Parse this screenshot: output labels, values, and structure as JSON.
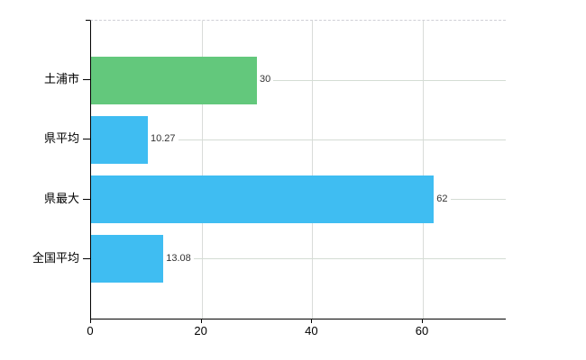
{
  "chart_data": {
    "type": "bar",
    "orientation": "horizontal",
    "title": "",
    "xlabel": "",
    "ylabel": "",
    "categories": [
      "土浦市",
      "県平均",
      "県最大",
      "全国平均"
    ],
    "values": [
      30,
      10.27,
      62,
      13.08
    ],
    "value_labels": [
      "30",
      "10.27",
      "62",
      "13.08"
    ],
    "bar_colors": [
      "#63c87c",
      "#3fbdf2",
      "#3fbdf2",
      "#3fbdf2"
    ],
    "x_ticks": [
      0,
      20,
      40,
      60
    ],
    "xlim": [
      0,
      75
    ],
    "grid": true,
    "legend_position": "none",
    "colors": {
      "background": "#ffffff",
      "axis": "#000000",
      "gridline": "#d4dcd4",
      "top_border": "#cfcfd6",
      "tick_label": "#000000",
      "value_label": "#333333"
    }
  }
}
